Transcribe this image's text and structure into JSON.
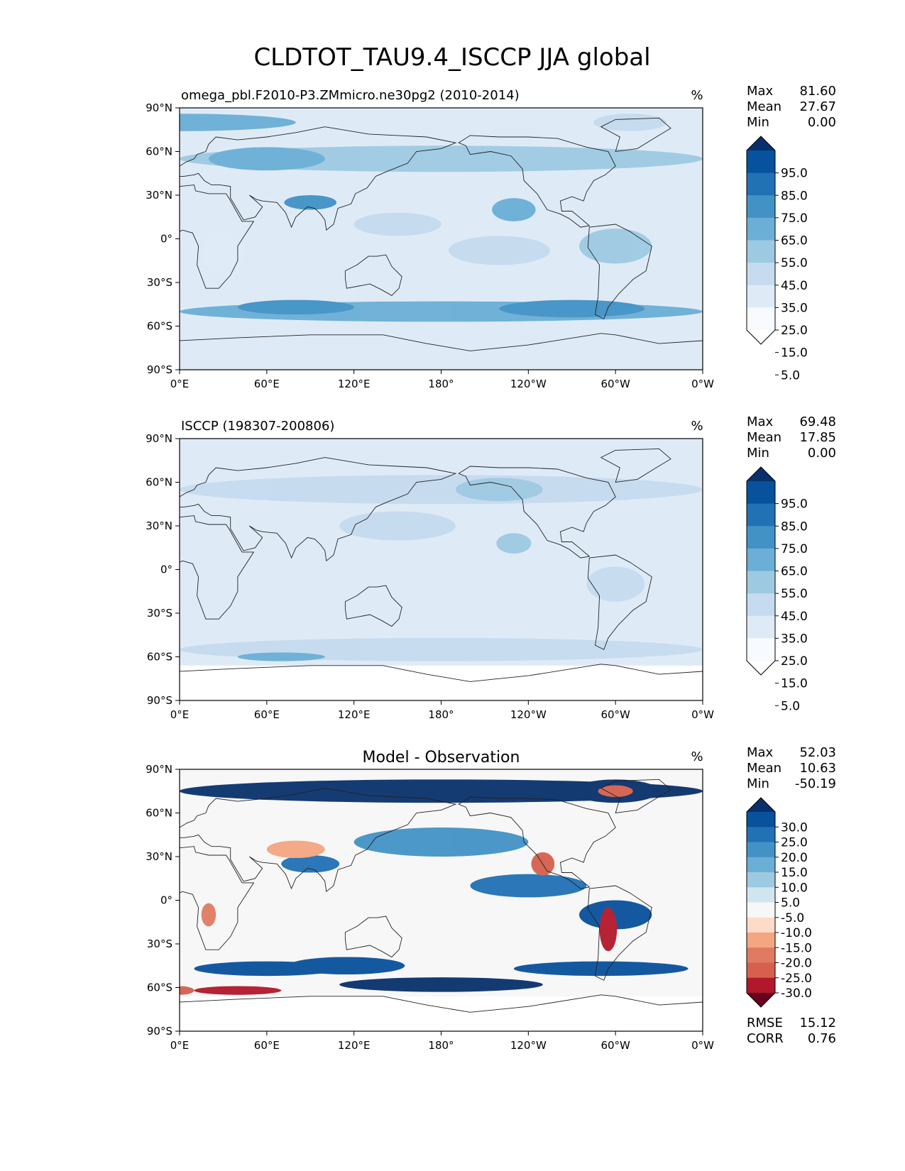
{
  "figure": {
    "title": "CLDTOT_TAU9.4_ISCCP JJA global"
  },
  "chart_data": [
    {
      "type": "heatmap",
      "id": "model",
      "title": "omega_pbl.F2010-P3.ZMmicro.ne30pg2 (2010-2014)",
      "units": "%",
      "xticks": [
        "0°E",
        "60°E",
        "120°E",
        "180°",
        "120°W",
        "60°W",
        "0°W"
      ],
      "yticks": [
        "90°N",
        "60°N",
        "30°N",
        "0°",
        "30°S",
        "60°S",
        "90°S"
      ],
      "xlim": [
        0,
        360
      ],
      "ylim": [
        -90,
        90
      ],
      "stats": {
        "max_label": "Max",
        "max": "81.60",
        "mean_label": "Mean",
        "mean": "27.67",
        "min_label": "Min",
        "min": "0.00"
      },
      "colorbar": {
        "levels": [
          "95.0",
          "85.0",
          "75.0",
          "65.0",
          "55.0",
          "45.0",
          "35.0",
          "25.0",
          "15.0",
          "5.0"
        ],
        "colors": [
          "#08306b",
          "#08519c",
          "#2171b5",
          "#4292c6",
          "#6baed6",
          "#9ecae1",
          "#c6dbef",
          "#deebf7",
          "#f7fbff",
          "#ffffff"
        ]
      }
    },
    {
      "type": "heatmap",
      "id": "obs",
      "title": "ISCCP (198307-200806)",
      "units": "%",
      "xticks": [
        "0°E",
        "60°E",
        "120°E",
        "180°",
        "120°W",
        "60°W",
        "0°W"
      ],
      "yticks": [
        "90°N",
        "60°N",
        "30°N",
        "0°",
        "30°S",
        "60°S",
        "90°S"
      ],
      "xlim": [
        0,
        360
      ],
      "ylim": [
        -90,
        90
      ],
      "stats": {
        "max_label": "Max",
        "max": "69.48",
        "mean_label": "Mean",
        "mean": "17.85",
        "min_label": "Min",
        "min": "0.00"
      },
      "colorbar": {
        "levels": [
          "95.0",
          "85.0",
          "75.0",
          "65.0",
          "55.0",
          "45.0",
          "35.0",
          "25.0",
          "15.0",
          "5.0"
        ],
        "colors": [
          "#08306b",
          "#08519c",
          "#2171b5",
          "#4292c6",
          "#6baed6",
          "#9ecae1",
          "#c6dbef",
          "#deebf7",
          "#f7fbff",
          "#ffffff"
        ]
      }
    },
    {
      "type": "heatmap",
      "id": "diff",
      "title": "Model - Observation",
      "units": "%",
      "xticks": [
        "0°E",
        "60°E",
        "120°E",
        "180°",
        "120°W",
        "60°W",
        "0°W"
      ],
      "yticks": [
        "90°N",
        "60°N",
        "30°N",
        "0°",
        "30°S",
        "60°S",
        "90°S"
      ],
      "xlim": [
        0,
        360
      ],
      "ylim": [
        -90,
        90
      ],
      "stats": {
        "max_label": "Max",
        "max": "52.03",
        "mean_label": "Mean",
        "mean": "10.63",
        "min_label": "Min",
        "min": "-50.19"
      },
      "extra_stats": {
        "rmse_label": "RMSE",
        "rmse": "15.12",
        "corr_label": "CORR",
        "corr": "0.76"
      },
      "colorbar": {
        "levels": [
          "30.0",
          "25.0",
          "20.0",
          "15.0",
          "10.0",
          "5.0",
          "-5.0",
          "-10.0",
          "-15.0",
          "-20.0",
          "-25.0",
          "-30.0"
        ],
        "colors": [
          "#08306b",
          "#08519c",
          "#2171b5",
          "#4292c6",
          "#6baed6",
          "#9ecae1",
          "#d1e5f0",
          "#f7f7f7",
          "#fddbc7",
          "#f4a582",
          "#e07b63",
          "#d6604d",
          "#b2182b",
          "#67001f"
        ]
      }
    }
  ]
}
